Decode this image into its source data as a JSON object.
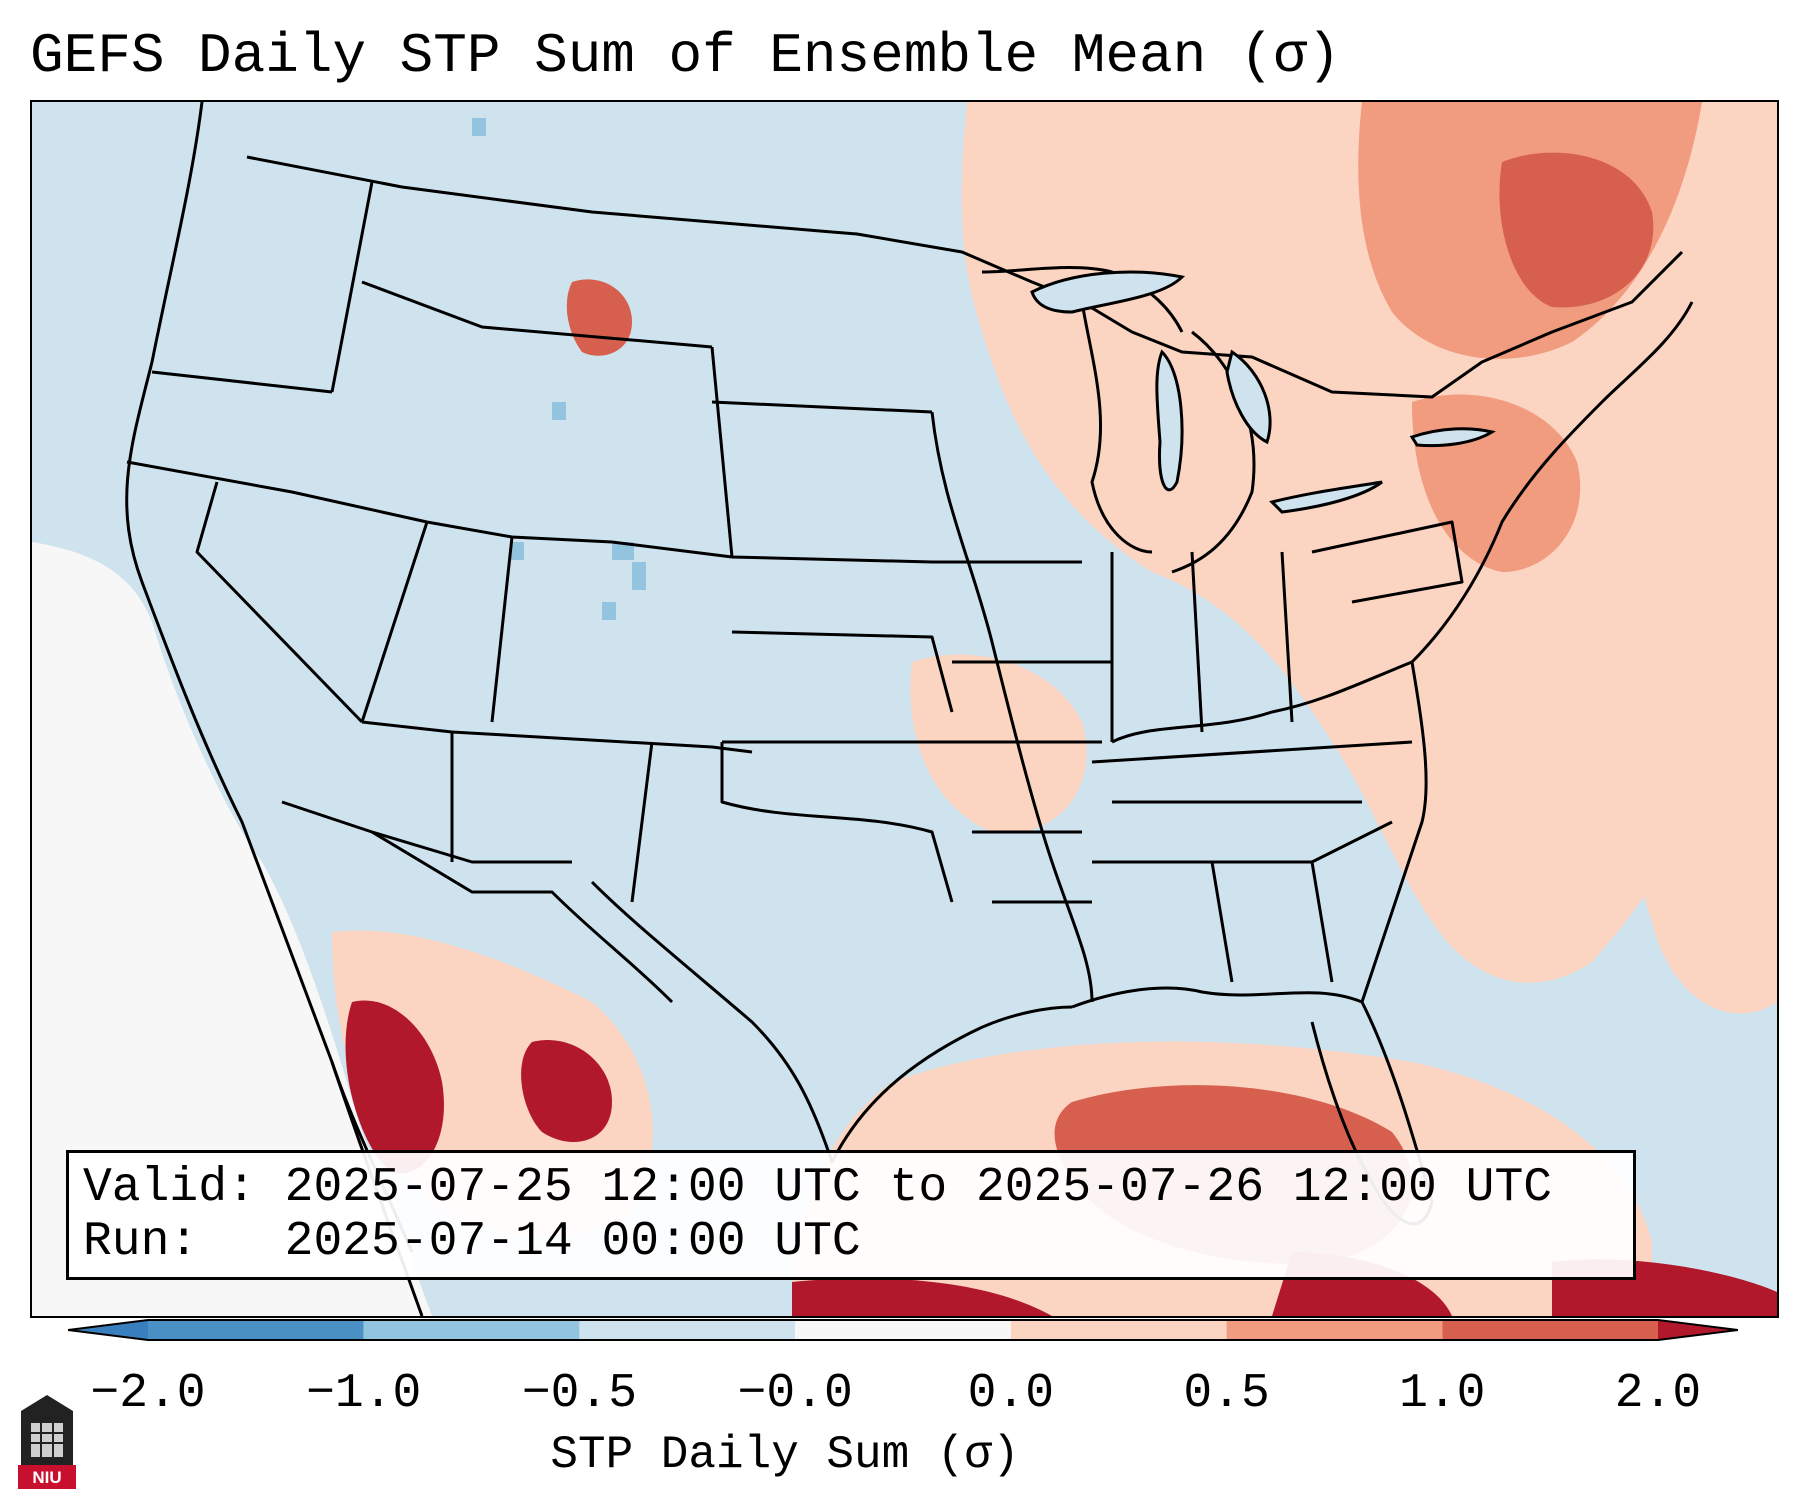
{
  "title": "GEFS Daily STP Sum of Ensemble Mean (σ)",
  "info": {
    "valid_label": "Valid:",
    "valid_value": "2025-07-25 12:00 UTC to 2025-07-26 12:00 UTC",
    "run_label": "Run:",
    "run_value": "2025-07-14 00:00 UTC"
  },
  "colorbar": {
    "label": "STP Daily Sum (σ)",
    "ticks": [
      "−2.0",
      "−1.0",
      "−0.5",
      "−0.0",
      "0.0",
      "0.5",
      "1.0",
      "2.0"
    ],
    "bins": [
      {
        "range": "< -2.0",
        "color": "#3a7fbd"
      },
      {
        "range": "-2.0 to -1.0",
        "color": "#4a90c4"
      },
      {
        "range": "-1.0 to -0.5",
        "color": "#92c3df"
      },
      {
        "range": "-0.5 to -0.0",
        "color": "#cfe3ef"
      },
      {
        "range": "-0.0 to 0.0",
        "color": "#f7f7f7"
      },
      {
        "range": "0.0 to 0.5",
        "color": "#fbd4c2"
      },
      {
        "range": "0.5 to 1.0",
        "color": "#f19b7f"
      },
      {
        "range": "1.0 to 2.0",
        "color": "#d6604d"
      },
      {
        "range": "> 2.0",
        "color": "#b2182b"
      }
    ]
  },
  "logo": {
    "text": "NIU",
    "name": "Northern Illinois University"
  },
  "colors": {
    "background_neutral": "#cfe3ef",
    "near_zero": "#f7f7f7",
    "low_positive": "#fbd4c2",
    "mid_positive": "#f19b7f",
    "high_positive": "#d6604d",
    "very_high": "#b2182b",
    "negative": "#92c3df"
  }
}
